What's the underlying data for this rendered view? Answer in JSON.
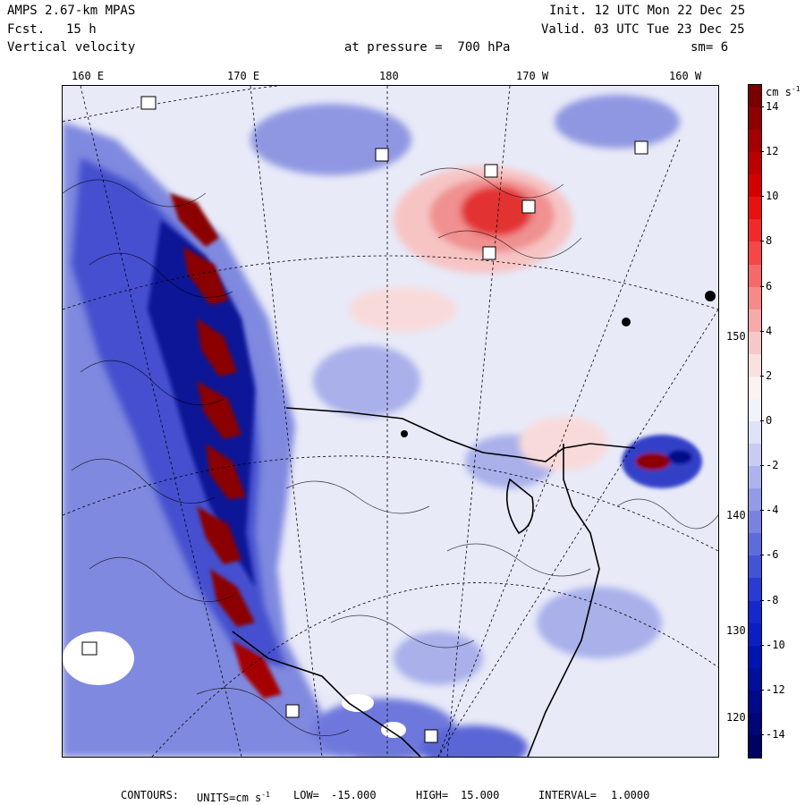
{
  "header": {
    "model": "AMPS 2.67-km MPAS",
    "fcst_label": "Fcst.",
    "fcst_value": "15 h",
    "field": "Vertical velocity",
    "init": "Init. 12 UTC Mon 22 Dec 25",
    "valid": "Valid. 03 UTC Tue 23 Dec 25",
    "pressure": "at pressure =  700 hPa",
    "smoothing": "sm= 6"
  },
  "longitude_labels": [
    "160 E",
    "170 E",
    "180",
    "170 W",
    "160 W"
  ],
  "latitude_labels": [
    "150 W",
    "140 W",
    "130 W",
    "120 W"
  ],
  "colorbar": {
    "units_label": "cm s",
    "units_exp": "-1",
    "labels": [
      "14",
      "12",
      "10",
      "8",
      "6",
      "4",
      "2",
      "0",
      "-2",
      "-4",
      "-6",
      "-8",
      "-10",
      "-12",
      "-14"
    ],
    "colors": [
      "#7a0000",
      "#8f0000",
      "#a50000",
      "#bb0000",
      "#d40000",
      "#e81010",
      "#f02a2a",
      "#f44848",
      "#f46a6a",
      "#f58a8a",
      "#f6aaaa",
      "#f8c8c8",
      "#fbe0e0",
      "#fdf2f2",
      "#f2f2fc",
      "#e0e2f8",
      "#c8ccf2",
      "#adb3ec",
      "#939ae6",
      "#7a82e0",
      "#606bdb",
      "#4453d6",
      "#2a3bd2",
      "#1428cc",
      "#0a1ec2",
      "#0014b0",
      "#000f9c",
      "#000a88",
      "#000674",
      "#000260"
    ]
  },
  "footer": {
    "contours_label": "CONTOURS:",
    "units_label": "UNITS=cm s",
    "units_exp": "-1",
    "low_label": "LOW=",
    "low_value": "-15.000",
    "high_label": "HIGH=",
    "high_value": "15.000",
    "interval_label": "INTERVAL=",
    "interval_value": "1.0000"
  },
  "colors": {
    "strong_up": "#8b0000",
    "up": "#e23030",
    "weak_up": "#f7c4c4",
    "neutral": "#e8eaf8",
    "weak_down": "#9aa3e6",
    "down": "#3340c8",
    "strong_down": "#000a88"
  }
}
